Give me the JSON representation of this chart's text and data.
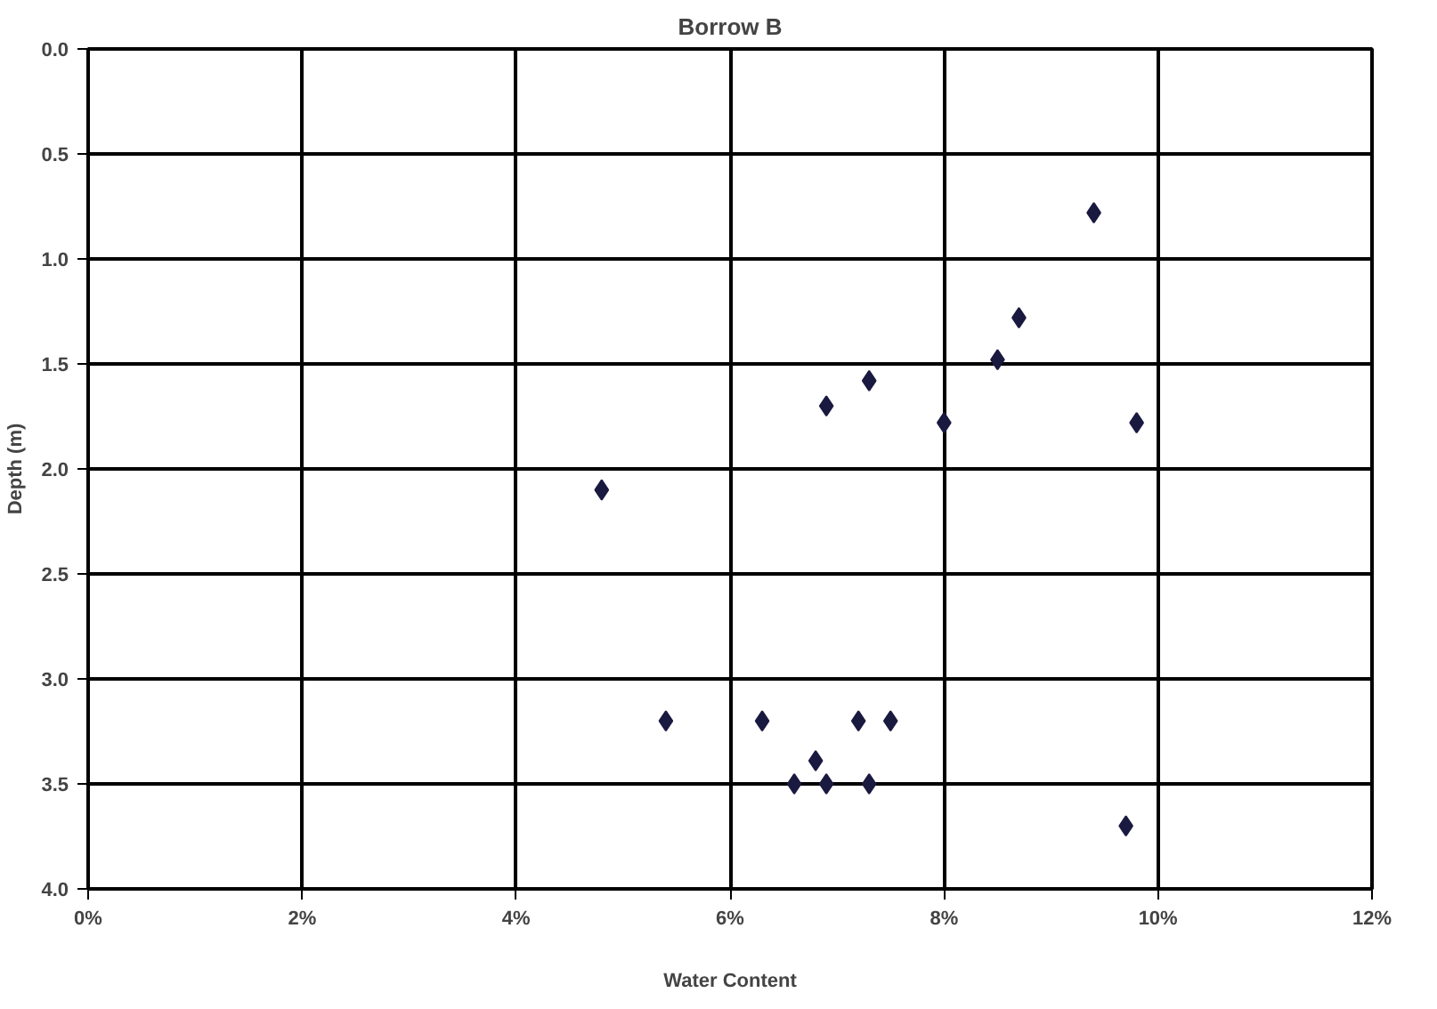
{
  "chart_data": {
    "type": "scatter",
    "title": "Borrow B",
    "xlabel": "Water Content",
    "ylabel": "Depth (m)",
    "x": [
      9.4,
      8.7,
      8.5,
      7.3,
      6.9,
      8.0,
      9.8,
      4.8,
      5.4,
      6.3,
      7.2,
      7.5,
      6.8,
      6.6,
      6.9,
      7.3,
      9.7
    ],
    "series": [
      {
        "color": "#1a1a40",
        "values": [
          0.78,
          1.28,
          1.48,
          1.58,
          1.7,
          1.78,
          1.78,
          2.1,
          3.2,
          3.2,
          3.2,
          3.2,
          3.39,
          3.5,
          3.5,
          3.5,
          3.7
        ]
      }
    ],
    "xlim": [
      0,
      12
    ],
    "ylim": [
      4.0,
      0.0
    ],
    "xticks": [
      {
        "value": 0,
        "label": "0%"
      },
      {
        "value": 2,
        "label": "2%"
      },
      {
        "value": 4,
        "label": "4%"
      },
      {
        "value": 6,
        "label": "6%"
      },
      {
        "value": 8,
        "label": "8%"
      },
      {
        "value": 10,
        "label": "10%"
      },
      {
        "value": 12,
        "label": "12%"
      }
    ],
    "yticks": [
      {
        "value": 0,
        "label": "0.0"
      },
      {
        "value": 0.5,
        "label": "0.5"
      },
      {
        "value": 1,
        "label": "1.0"
      },
      {
        "value": 1.5,
        "label": "1.5"
      },
      {
        "value": 2,
        "label": "2.0"
      },
      {
        "value": 2.5,
        "label": "2.5"
      },
      {
        "value": 3,
        "label": "3.0"
      },
      {
        "value": 3.5,
        "label": "3.5"
      },
      {
        "value": 4,
        "label": "4.0"
      }
    ],
    "grid": true,
    "marker": "diamond"
  }
}
